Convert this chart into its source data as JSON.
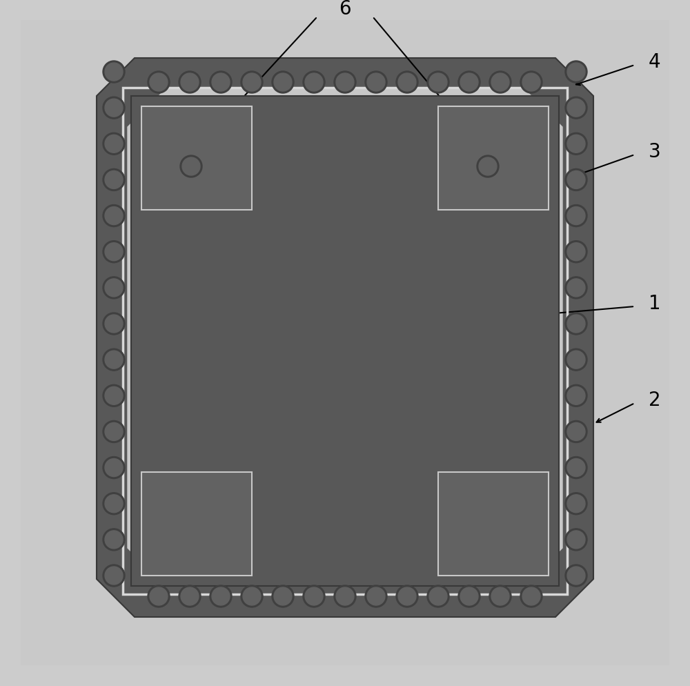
{
  "bg_color": "#cccccc",
  "light_gray": "#c8c8c8",
  "dark_frame": "#585858",
  "medium_gray": "#646464",
  "light_strip": "#c0c0c0",
  "via_fill": "#606060",
  "via_edge": "#404040",
  "white_border": "#e8e8e8",
  "label_color": "#000000",
  "label_fontsize": 20
}
